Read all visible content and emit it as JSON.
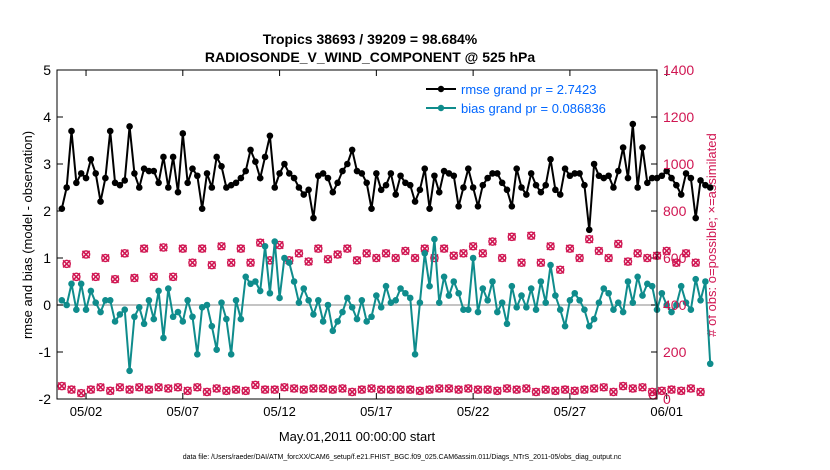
{
  "chart_data": {
    "type": "line",
    "title": "Tropics 38693 / 39209 = 98.684%",
    "subtitle": "RADIOSONDE_V_WIND_COMPONENT @ 525 hPa",
    "xlabel": "May.01,2011 00:00:00 start",
    "ylabel_left": "rmse and bias (model - observation)",
    "ylabel_right": "# of obs: o=possible; ×=assimilated",
    "footer": "data file: /Users/raeder/DAI/ATM_forcXX/CAM6_setup/f.e21.FHIST_BGC.f09_025.CAM6assim.011/Diags_NTrS_2011-05/obs_diag_output.nc",
    "x_range_days": [
      0.5,
      31.5
    ],
    "ylim_left": [
      -2,
      5
    ],
    "ylim_right": [
      0,
      1400
    ],
    "x_ticks": [
      {
        "day": 2,
        "label": "05/02"
      },
      {
        "day": 7,
        "label": "05/07"
      },
      {
        "day": 12,
        "label": "05/12"
      },
      {
        "day": 17,
        "label": "05/17"
      },
      {
        "day": 22,
        "label": "05/22"
      },
      {
        "day": 27,
        "label": "05/27"
      },
      {
        "day": 32,
        "label": "06/01"
      }
    ],
    "y_ticks_left": [
      "-2",
      "-1",
      "0",
      "1",
      "2",
      "3",
      "4",
      "5"
    ],
    "y_ticks_right": [
      "0",
      "200",
      "400",
      "600",
      "800",
      "1000",
      "1200",
      "1400"
    ],
    "colors": {
      "rmse": "#000000",
      "bias": "#0f8c8c",
      "obs": "#d01652",
      "legend_text": "#0066ff",
      "zero_line": "#b0b0b0"
    },
    "series": [
      {
        "name": "rmse grand pr = 2.7423",
        "x_start": 0.75,
        "x_step": 0.25,
        "values": [
          2.05,
          2.5,
          3.7,
          2.6,
          2.8,
          2.7,
          3.1,
          2.8,
          2.2,
          2.7,
          3.7,
          2.6,
          2.55,
          2.65,
          3.8,
          2.8,
          2.5,
          2.9,
          2.85,
          2.85,
          2.6,
          3.15,
          2.5,
          3.15,
          2.4,
          3.65,
          2.6,
          2.9,
          2.75,
          2.05,
          2.8,
          2.5,
          3.15,
          2.95,
          2.5,
          2.55,
          2.6,
          2.7,
          2.85,
          3.3,
          3.05,
          2.7,
          3.15,
          3.6,
          2.5,
          2.8,
          3.0,
          2.8,
          2.7,
          2.5,
          2.35,
          2.45,
          1.85,
          2.75,
          2.8,
          2.7,
          2.4,
          2.6,
          2.85,
          3.0,
          3.3,
          2.85,
          2.8,
          2.6,
          2.05,
          2.8,
          2.45,
          2.55,
          2.8,
          2.35,
          2.75,
          2.6,
          2.55,
          2.2,
          2.45,
          2.9,
          2.05,
          2.75,
          2.4,
          2.85,
          2.8,
          2.75,
          2.1,
          2.5,
          2.9,
          2.5,
          2.1,
          2.55,
          2.7,
          2.8,
          2.8,
          2.6,
          2.45,
          2.1,
          2.9,
          2.5,
          2.35,
          2.8,
          2.55,
          2.4,
          2.55,
          3.1,
          2.45,
          2.35,
          2.9,
          2.75,
          2.8,
          2.8,
          2.55,
          1.6,
          3.0,
          2.75,
          2.7,
          2.75,
          2.5,
          2.85,
          3.35,
          2.7,
          3.85,
          2.5,
          3.35,
          2.6,
          2.7,
          2.7,
          2.75,
          2.85,
          2.7,
          2.55,
          2.35,
          2.8,
          2.7,
          1.85,
          2.65,
          2.55
        ],
        "final_value": 2.5
      },
      {
        "name": "bias grand pr = 0.086836",
        "x_start": 0.75,
        "x_step": 0.25,
        "values": [
          0.1,
          0.0,
          0.45,
          -0.1,
          0.45,
          -0.1,
          0.3,
          0.05,
          -0.15,
          0.1,
          0.1,
          -0.35,
          -0.2,
          -0.1,
          -1.4,
          -0.25,
          -0.05,
          -0.4,
          0.1,
          -0.3,
          0.3,
          -0.7,
          0.35,
          -0.25,
          -0.15,
          -0.35,
          0.1,
          -0.25,
          -1.05,
          -0.05,
          0.0,
          -0.45,
          -0.95,
          0.05,
          -0.3,
          -1.05,
          0.1,
          -0.3,
          0.6,
          0.45,
          0.5,
          0.3,
          1.25,
          0.25,
          1.35,
          0.15,
          1.0,
          0.9,
          0.5,
          0.05,
          0.35,
          0.1,
          -0.2,
          0.1,
          -0.35,
          0.0,
          -0.55,
          -0.35,
          -0.15,
          0.15,
          -0.05,
          -0.3,
          0.1,
          -0.35,
          -0.25,
          0.2,
          -0.05,
          0.4,
          0.05,
          0.1,
          0.35,
          0.25,
          0.15,
          -1.05,
          0.05,
          1.1,
          0.4,
          1.4,
          0.05,
          0.6,
          0.2,
          0.5,
          0.25,
          -0.1,
          -0.1,
          1.0,
          -0.15,
          0.35,
          0.1,
          0.5,
          -0.15,
          0.05,
          -0.4,
          0.4,
          -0.05,
          0.2,
          -0.05,
          0.35,
          -0.1,
          0.5,
          0.05,
          0.85,
          0.2,
          -0.1,
          -0.45,
          0.1,
          0.25,
          0.1,
          -0.1,
          -0.45,
          -0.3,
          0.05,
          0.35,
          0.25,
          -0.1,
          0.05,
          -0.15,
          0.5,
          0.05,
          0.6,
          0.2,
          0.45,
          0.4,
          -0.1,
          0.25,
          0.0,
          -0.15,
          0.0,
          0.4,
          0.05,
          -0.1,
          0.55,
          0.1,
          0.5
        ],
        "final_value": -1.25
      },
      {
        "name": "obs possible",
        "x_start": 0.75,
        "x_step": 0.25,
        "values": [
          55,
          575,
          40,
          520,
          25,
          615,
          40,
          520,
          50,
          600,
          35,
          510,
          50,
          620,
          40,
          515,
          50,
          640,
          40,
          520,
          50,
          645,
          45,
          520,
          50,
          640,
          35,
          580,
          50,
          640,
          30,
          570,
          45,
          650,
          35,
          580,
          40,
          640,
          35,
          580,
          60,
          665,
          40,
          590,
          40,
          655,
          50,
          590,
          45,
          620,
          40,
          585,
          45,
          640,
          45,
          595,
          40,
          615,
          45,
          640,
          30,
          590,
          40,
          620,
          45,
          600,
          40,
          620,
          40,
          600,
          40,
          630,
          40,
          600,
          35,
          640,
          40,
          600,
          45,
          640,
          45,
          610,
          40,
          620,
          45,
          650,
          40,
          620,
          40,
          670,
          35,
          600,
          45,
          690,
          40,
          580,
          45,
          695,
          30,
          580,
          40,
          650,
          35,
          550,
          40,
          640,
          35,
          600,
          40,
          680,
          45,
          630,
          50,
          600,
          30,
          660,
          55,
          585,
          45,
          620,
          50,
          600,
          30,
          610,
          35,
          630,
          40,
          580,
          35,
          620,
          45,
          580,
          30
        ],
        "final_value": 15
      },
      {
        "name": "obs assimilated",
        "x_start": 0.75,
        "x_step": 0.25,
        "values": [
          55,
          575,
          40,
          520,
          25,
          615,
          40,
          520,
          50,
          600,
          35,
          510,
          50,
          620,
          40,
          515,
          50,
          640,
          40,
          520,
          50,
          645,
          45,
          520,
          50,
          640,
          35,
          580,
          50,
          640,
          30,
          570,
          45,
          650,
          35,
          580,
          40,
          640,
          35,
          580,
          60,
          665,
          40,
          590,
          40,
          655,
          50,
          590,
          45,
          620,
          40,
          585,
          45,
          640,
          45,
          595,
          40,
          615,
          45,
          640,
          30,
          590,
          40,
          620,
          45,
          600,
          40,
          620,
          40,
          600,
          40,
          630,
          40,
          600,
          35,
          640,
          40,
          600,
          45,
          640,
          45,
          610,
          40,
          620,
          45,
          650,
          40,
          620,
          40,
          670,
          35,
          600,
          45,
          690,
          40,
          580,
          45,
          695,
          30,
          580,
          40,
          650,
          35,
          550,
          40,
          640,
          35,
          600,
          40,
          680,
          45,
          630,
          50,
          600,
          30,
          660,
          55,
          585,
          45,
          620,
          50,
          600,
          30,
          610,
          35,
          630,
          40,
          580,
          35,
          620,
          45,
          580,
          30
        ],
        "final_value": 15
      }
    ]
  }
}
